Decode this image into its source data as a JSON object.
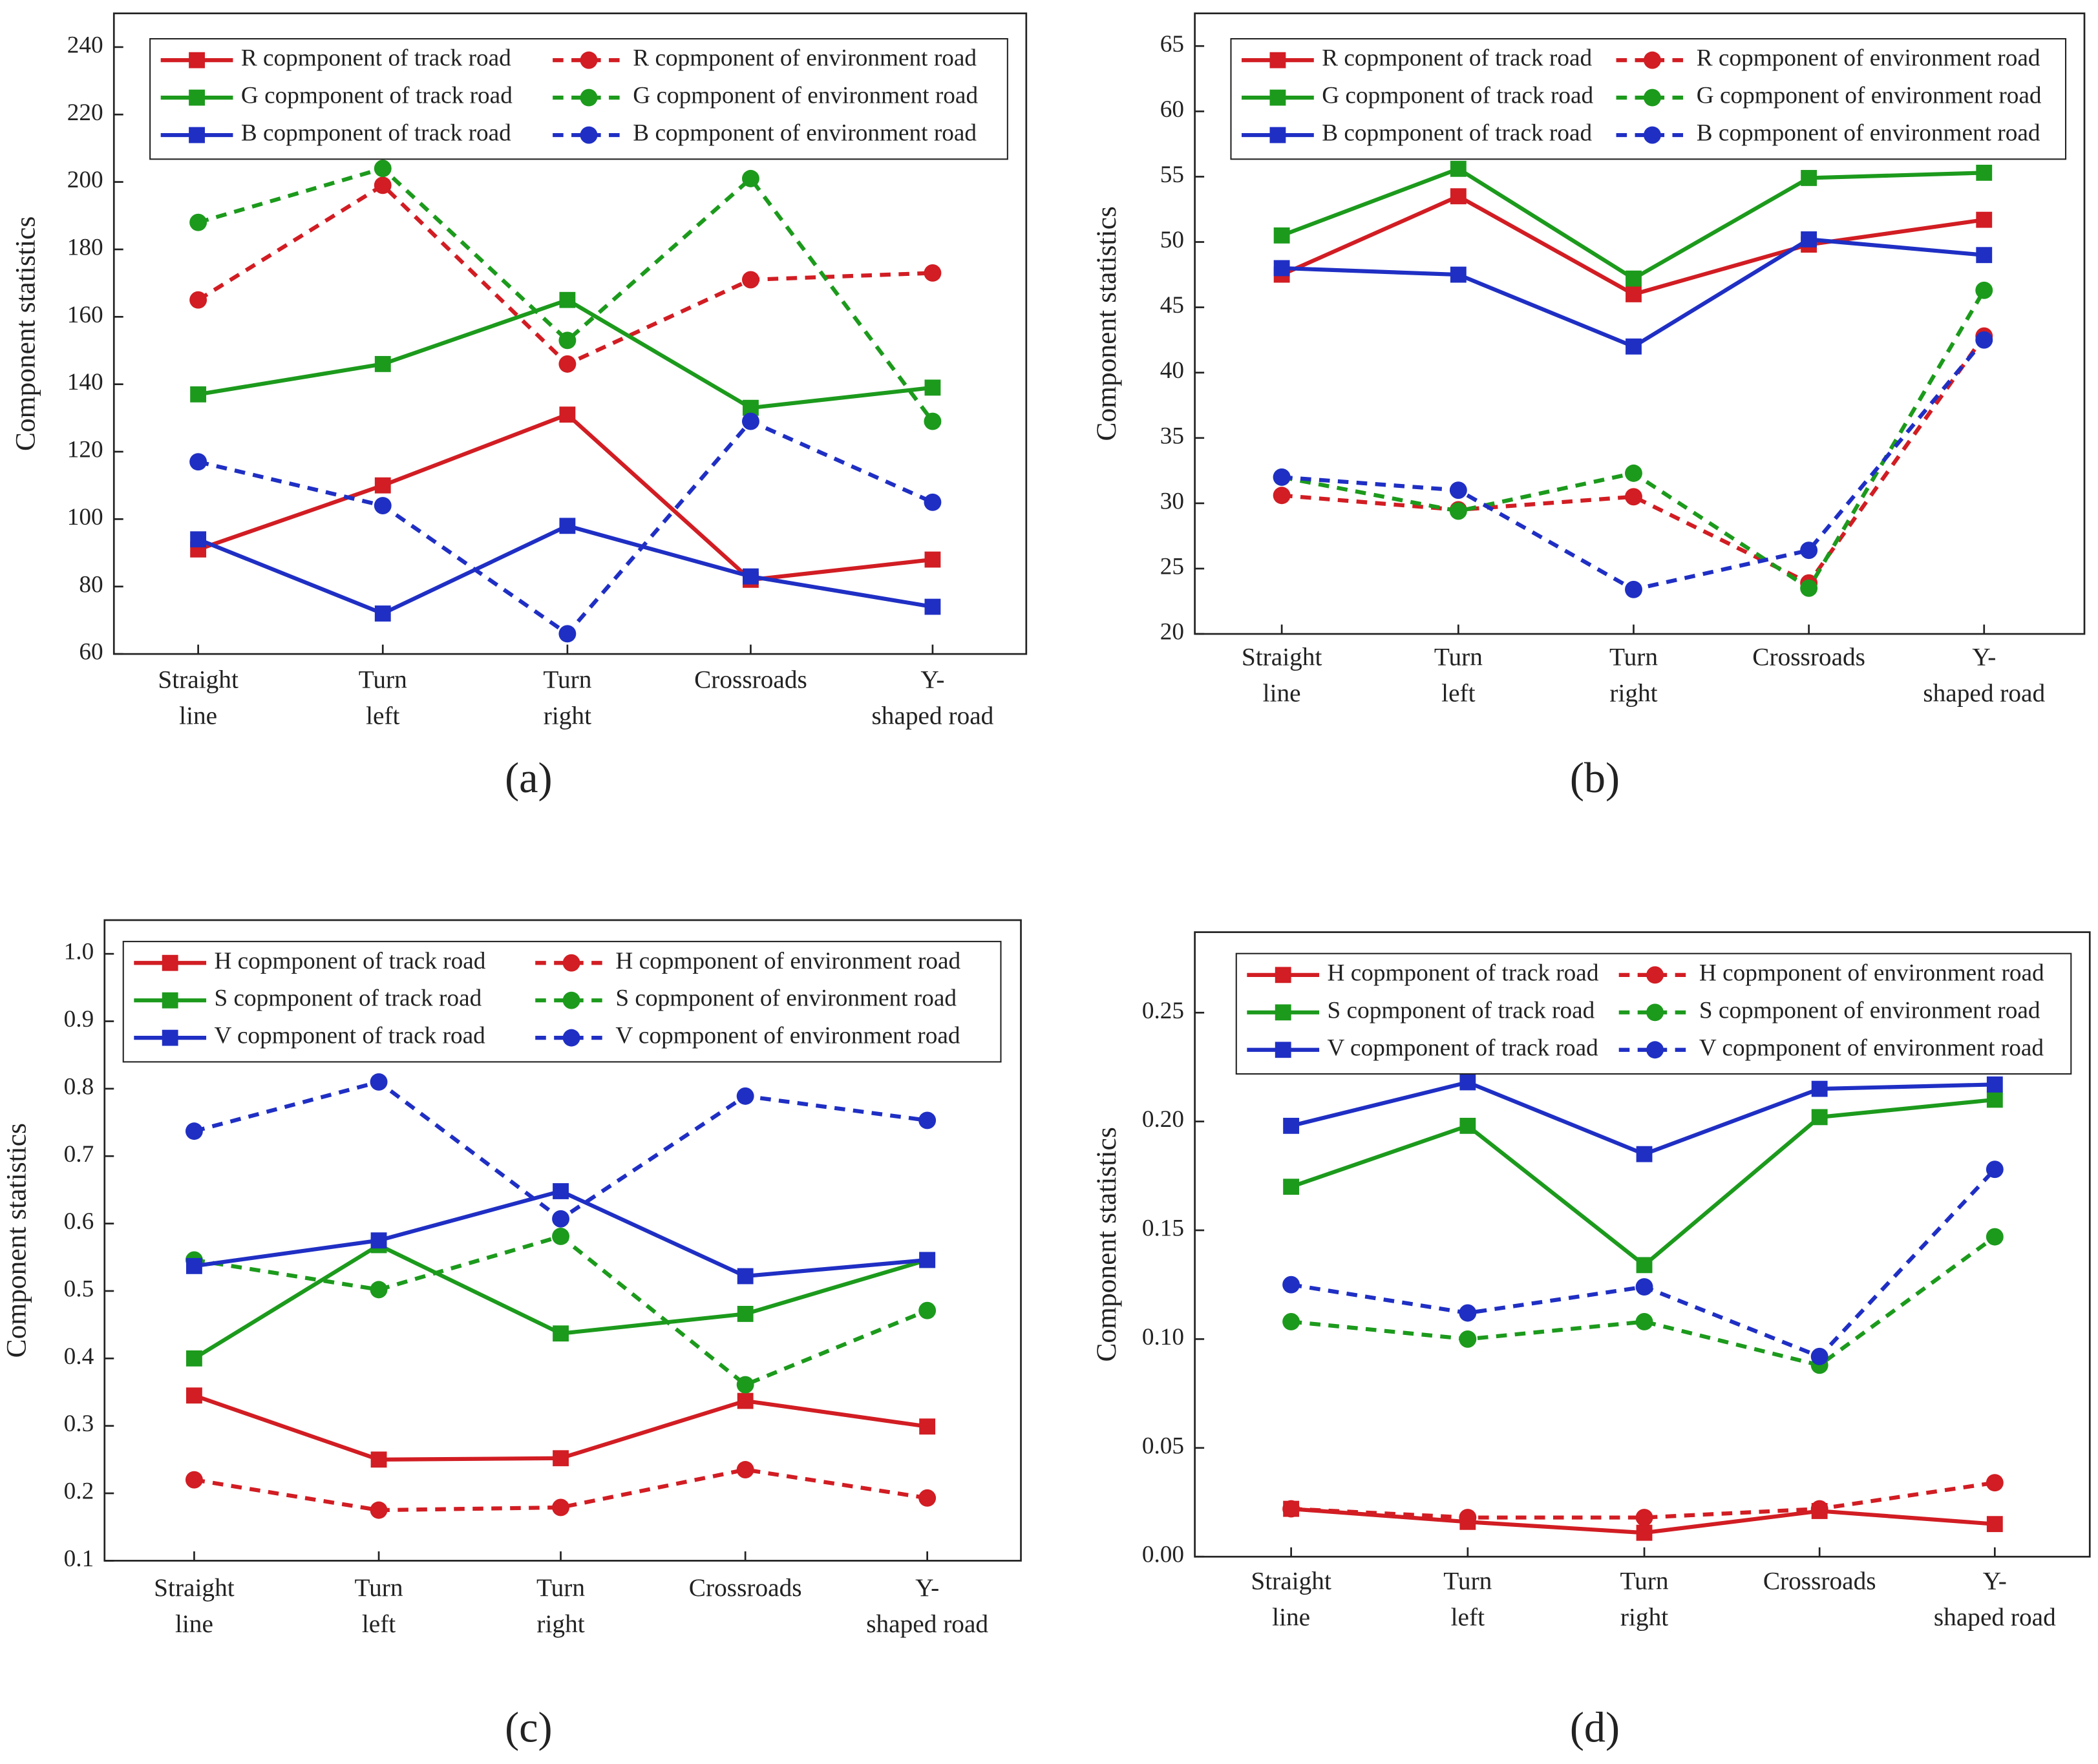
{
  "chart_data": [
    {
      "type": "line",
      "label": "(a)",
      "y_label": "Component statistics",
      "legend": "top",
      "grid": false,
      "categories": [
        [
          "Straight",
          "line"
        ],
        [
          "Turn",
          "left"
        ],
        [
          "Turn",
          "right"
        ],
        [
          "Crossroads"
        ],
        [
          "Y-",
          "shaped road"
        ]
      ],
      "ylim": [
        60,
        250
      ],
      "yticks": [
        60,
        80,
        100,
        120,
        140,
        160,
        180,
        200,
        220,
        240
      ],
      "series": [
        {
          "name": "R copmponent of track road",
          "color": "#d11d23",
          "style": "solid",
          "marker": "square",
          "values": [
            91,
            110,
            131,
            82,
            88
          ]
        },
        {
          "name": "R copmponent of environment road",
          "color": "#d11d23",
          "style": "dashed",
          "marker": "circle",
          "values": [
            165,
            199,
            146,
            171,
            173
          ]
        },
        {
          "name": "G copmponent of track road",
          "color": "#1c9a1c",
          "style": "solid",
          "marker": "square",
          "values": [
            137,
            146,
            165,
            133,
            139
          ]
        },
        {
          "name": "G copmponent of environment road",
          "color": "#1c9a1c",
          "style": "dashed",
          "marker": "circle",
          "values": [
            188,
            204,
            153,
            201,
            129
          ]
        },
        {
          "name": "B copmponent of track road",
          "color": "#1f2fc4",
          "style": "solid",
          "marker": "square",
          "values": [
            94,
            72,
            98,
            83,
            74
          ]
        },
        {
          "name": "B copmponent of environment road",
          "color": "#1f2fc4",
          "style": "dashed",
          "marker": "circle",
          "values": [
            117,
            104,
            66,
            129,
            105
          ]
        }
      ]
    },
    {
      "type": "line",
      "label": "(b)",
      "y_label": "Component statistics",
      "legend": "top",
      "grid": false,
      "categories": [
        [
          "Straight",
          "line"
        ],
        [
          "Turn",
          "left"
        ],
        [
          "Turn",
          "right"
        ],
        [
          "Crossroads"
        ],
        [
          "Y-",
          "shaped road"
        ]
      ],
      "ylim": [
        20,
        67.5
      ],
      "yticks": [
        20,
        25,
        30,
        35,
        40,
        45,
        50,
        55,
        60,
        65
      ],
      "series": [
        {
          "name": "R copmponent of track road",
          "color": "#d11d23",
          "style": "solid",
          "marker": "square",
          "values": [
            47.5,
            53.5,
            46,
            49.8,
            51.7
          ]
        },
        {
          "name": "R copmponent of environment road",
          "color": "#d11d23",
          "style": "dashed",
          "marker": "circle",
          "values": [
            30.6,
            29.5,
            30.5,
            23.9,
            42.8
          ]
        },
        {
          "name": "G copmponent of track road",
          "color": "#1c9a1c",
          "style": "solid",
          "marker": "square",
          "values": [
            50.5,
            55.6,
            47.2,
            54.9,
            55.3
          ]
        },
        {
          "name": "G copmponent of environment road",
          "color": "#1c9a1c",
          "style": "dashed",
          "marker": "circle",
          "values": [
            32,
            29.4,
            32.3,
            23.5,
            46.3
          ]
        },
        {
          "name": "B copmponent of track road",
          "color": "#1f2fc4",
          "style": "solid",
          "marker": "square",
          "values": [
            48,
            47.5,
            42,
            50.2,
            49
          ]
        },
        {
          "name": "B copmponent of environment road",
          "color": "#1f2fc4",
          "style": "dashed",
          "marker": "circle",
          "values": [
            32,
            31,
            23.4,
            26.4,
            42.5
          ]
        }
      ]
    },
    {
      "type": "line",
      "label": "(c)",
      "y_label": "Component statistics",
      "legend": "top",
      "grid": false,
      "categories": [
        [
          "Straight",
          "line"
        ],
        [
          "Turn",
          "left"
        ],
        [
          "Turn",
          "right"
        ],
        [
          "Crossroads"
        ],
        [
          "Y-",
          "shaped road"
        ]
      ],
      "ylim": [
        0.1,
        1.05
      ],
      "yticks": [
        0.1,
        0.2,
        0.3,
        0.4,
        0.5,
        0.6,
        0.7,
        0.8,
        0.9,
        {
          "value": 1,
          "label": "1.0"
        }
      ],
      "series": [
        {
          "name": "H copmponent of track road",
          "color": "#d11d23",
          "style": "solid",
          "marker": "square",
          "values": [
            0.345,
            0.25,
            0.252,
            0.337,
            0.299
          ]
        },
        {
          "name": "H copmponent of environment road",
          "color": "#d11d23",
          "style": "dashed",
          "marker": "circle",
          "values": [
            0.22,
            0.175,
            0.179,
            0.235,
            0.193
          ]
        },
        {
          "name": "S copmponent of track road",
          "color": "#1c9a1c",
          "style": "solid",
          "marker": "square",
          "values": [
            0.4,
            0.568,
            0.437,
            0.466,
            0.546
          ]
        },
        {
          "name": "S copmponent of environment road",
          "color": "#1c9a1c",
          "style": "dashed",
          "marker": "circle",
          "values": [
            0.546,
            0.502,
            0.581,
            0.361,
            0.471
          ]
        },
        {
          "name": "V copmponent of track road",
          "color": "#1f2fc4",
          "style": "solid",
          "marker": "square",
          "values": [
            0.537,
            0.575,
            0.648,
            0.522,
            0.546
          ]
        },
        {
          "name": "V copmponent of environment road",
          "color": "#1f2fc4",
          "style": "dashed",
          "marker": "circle",
          "values": [
            0.737,
            0.81,
            0.607,
            0.789,
            0.753
          ]
        }
      ]
    },
    {
      "type": "line",
      "label": "(d)",
      "y_label": "Component statistics",
      "legend": "top",
      "grid": false,
      "categories": [
        [
          "Straight",
          "line"
        ],
        [
          "Turn",
          "left"
        ],
        [
          "Turn",
          "right"
        ],
        [
          "Crossroads"
        ],
        [
          "Y-",
          "shaped road"
        ]
      ],
      "ylim": [
        0,
        0.287
      ],
      "yticks": [
        {
          "value": 0,
          "label": "0.00"
        },
        0.05,
        {
          "value": 0.1,
          "label": "0.10"
        },
        0.15,
        {
          "value": 0.2,
          "label": "0.20"
        },
        0.25
      ],
      "series": [
        {
          "name": "H copmponent of track road",
          "color": "#d11d23",
          "style": "solid",
          "marker": "square",
          "values": [
            0.022,
            0.016,
            0.011,
            0.021,
            0.015
          ]
        },
        {
          "name": "H copmponent of environment road",
          "color": "#d11d23",
          "style": "dashed",
          "marker": "circle",
          "values": [
            0.022,
            0.018,
            0.018,
            0.022,
            0.034
          ]
        },
        {
          "name": "S copmponent of track road",
          "color": "#1c9a1c",
          "style": "solid",
          "marker": "square",
          "values": [
            0.17,
            0.198,
            0.134,
            0.202,
            0.21
          ]
        },
        {
          "name": "S copmponent of environment road",
          "color": "#1c9a1c",
          "style": "dashed",
          "marker": "circle",
          "values": [
            0.108,
            0.1,
            0.108,
            0.088,
            0.147
          ]
        },
        {
          "name": "V copmponent of track road",
          "color": "#1f2fc4",
          "style": "solid",
          "marker": "square",
          "values": [
            0.198,
            0.218,
            0.185,
            0.215,
            0.217
          ]
        },
        {
          "name": "V copmponent of environment road",
          "color": "#1f2fc4",
          "style": "dashed",
          "marker": "circle",
          "values": [
            0.125,
            0.112,
            0.124,
            0.092,
            0.178
          ]
        }
      ]
    }
  ]
}
